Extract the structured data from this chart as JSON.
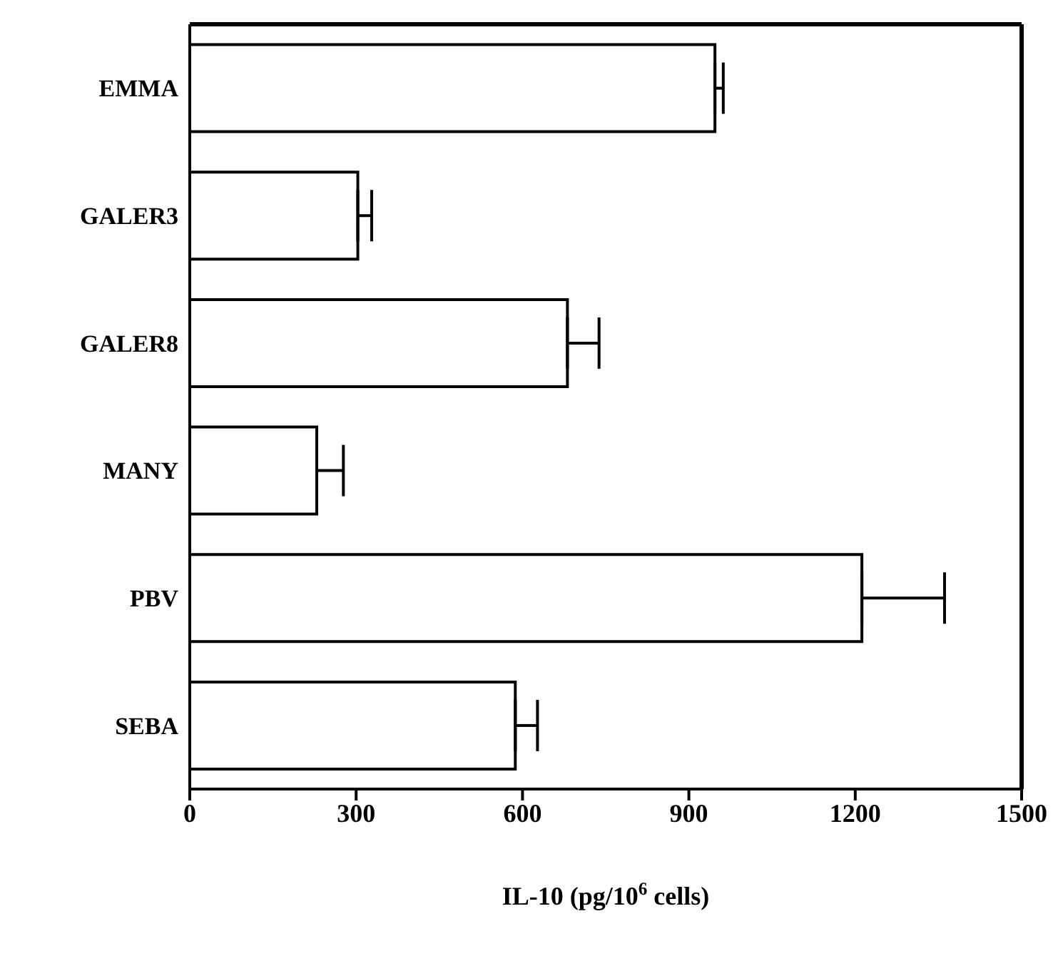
{
  "chart_data": {
    "type": "bar",
    "orientation": "horizontal",
    "xlabel": "IL-10 (pg/10$^{6}$ cells)",
    "categories": [
      "EMMA",
      "GALER3",
      "GALER8",
      "MANY",
      "PBV",
      "SEBA"
    ],
    "values": [
      947,
      303,
      681,
      229,
      1212,
      587
    ],
    "errors": [
      [
        947,
        962
      ],
      [
        303,
        328
      ],
      [
        681,
        738
      ],
      [
        229,
        277
      ],
      [
        1212,
        1361
      ],
      [
        587,
        627
      ]
    ],
    "color": "#ffffff",
    "xlim": [
      0,
      1500
    ],
    "xticks": [
      0,
      300,
      600,
      900,
      1200,
      1500
    ],
    "grid": false
  }
}
